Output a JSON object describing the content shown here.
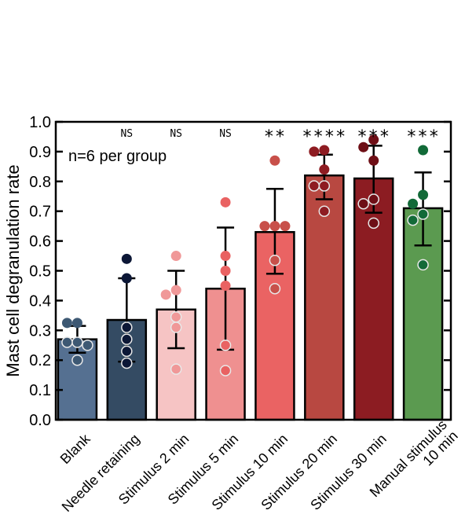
{
  "chart_data": {
    "type": "bar",
    "title": "",
    "xlabel": "",
    "ylabel": "Mast cell degranulation rate",
    "ylim": [
      0,
      1.0
    ],
    "yticks": [
      "0.0",
      "0.1",
      "0.2",
      "0.3",
      "0.4",
      "0.5",
      "0.6",
      "0.7",
      "0.8",
      "0.9",
      "1.0"
    ],
    "grid": false,
    "annotation": "n=6 per group",
    "categories": [
      "Blank",
      "Needle retaining",
      "Stimulus 2 min",
      "Stimulus 5 min",
      "Stimulus 10 min",
      "Stimulus 20 min",
      "Stimulus 30 min",
      "Manual stimulus\n10 min"
    ],
    "values": [
      0.27,
      0.335,
      0.37,
      0.44,
      0.63,
      0.82,
      0.81,
      0.71
    ],
    "error_low": [
      0.225,
      0.195,
      0.24,
      0.235,
      0.49,
      0.74,
      0.695,
      0.585
    ],
    "error_high": [
      0.315,
      0.475,
      0.5,
      0.645,
      0.775,
      0.89,
      0.92,
      0.83
    ],
    "significance": [
      "",
      "NS",
      "NS",
      "NS",
      "**",
      "****",
      "***",
      "***"
    ],
    "bar_colors": [
      "#557091",
      "#344b63",
      "#f6c4c4",
      "#ef9090",
      "#ea6363",
      "#b84841",
      "#8c1c22",
      "#5b9a50"
    ],
    "point_colors": [
      "#3d5873",
      "#0c1736",
      "#f09898",
      "#e96262",
      "#c8504a",
      "#8e1c22",
      "#6e0f16",
      "#126a38"
    ],
    "points": [
      [
        0.325,
        0.325,
        0.26,
        0.26,
        0.25,
        0.2
      ],
      [
        0.54,
        0.475,
        0.31,
        0.27,
        0.23,
        0.19
      ],
      [
        0.55,
        0.435,
        0.42,
        0.345,
        0.31,
        0.17
      ],
      [
        0.73,
        0.55,
        0.5,
        0.45,
        0.25,
        0.165
      ],
      [
        0.87,
        0.65,
        0.65,
        0.65,
        0.535,
        0.44
      ],
      [
        0.905,
        0.9,
        0.84,
        0.785,
        0.785,
        0.7
      ],
      [
        0.94,
        0.915,
        0.87,
        0.74,
        0.725,
        0.66
      ],
      [
        0.905,
        0.755,
        0.725,
        0.69,
        0.67,
        0.52
      ]
    ]
  }
}
